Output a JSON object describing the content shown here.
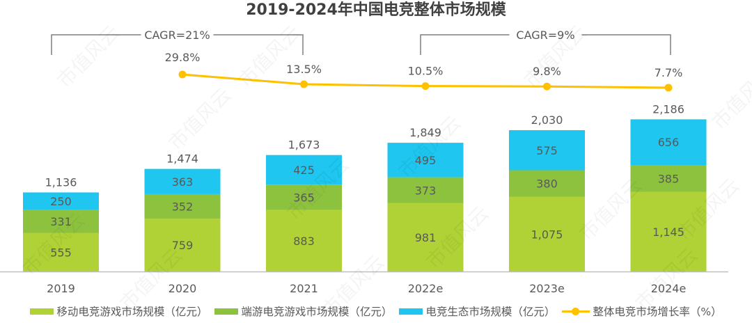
{
  "chart_data": {
    "type": "bar",
    "stacked": true,
    "title": "2019-2024年中国电竞整体市场规模",
    "categories": [
      "2019",
      "2020",
      "2021",
      "2022e",
      "2023e",
      "2024e"
    ],
    "series": [
      {
        "name": "移动电竞游戏市场规模（亿元）",
        "color": "#B0D236",
        "values": [
          555,
          759,
          883,
          981,
          1075,
          1145
        ],
        "labels": [
          "555",
          "759",
          "883",
          "981",
          "1,075",
          "1,145"
        ]
      },
      {
        "name": "端游电竞游戏市场规模（亿元）",
        "color": "#8DC23F",
        "values": [
          331,
          352,
          365,
          373,
          380,
          385
        ],
        "labels": [
          "331",
          "352",
          "365",
          "373",
          "380",
          "385"
        ]
      },
      {
        "name": "电竞生态市场规模（亿元）",
        "color": "#1EC6F0",
        "values": [
          250,
          363,
          425,
          495,
          575,
          656
        ],
        "labels": [
          "250",
          "363",
          "425",
          "495",
          "575",
          "656"
        ]
      }
    ],
    "totals": [
      1136,
      1474,
      1673,
      1849,
      2030,
      2186
    ],
    "total_labels": [
      "1,136",
      "1,474",
      "1,673",
      "1,849",
      "2,030",
      "2,186"
    ],
    "line_series": {
      "name": "整体电竞市场增长率（%）",
      "color": "#FFC000",
      "values": [
        null,
        29.8,
        13.5,
        10.5,
        9.8,
        7.7
      ],
      "labels": [
        "",
        "29.8%",
        "13.5%",
        "10.5%",
        "9.8%",
        "7.7%"
      ]
    },
    "annotations": [
      {
        "text": "CAGR=21%",
        "from": "2019",
        "to": "2021"
      },
      {
        "text": "CAGR=9%",
        "from": "2022e",
        "to": "2024e"
      }
    ],
    "xlabel": "",
    "ylabel": "",
    "ylim": [
      0,
      2500
    ],
    "grid": false,
    "legend_position": "bottom",
    "axis_color": "#BFBFBF",
    "label_color": "#595959"
  },
  "watermark": "市值风云"
}
